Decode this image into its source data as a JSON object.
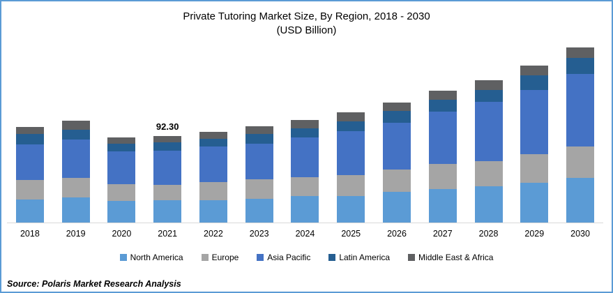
{
  "frame": {
    "border_color": "#5b9bd5",
    "background": "#ffffff",
    "axis_line_color": "#d9d9d9"
  },
  "title": {
    "line1": "Private Tutoring Market Size, By Region, 2018 - 2030",
    "line2": "(USD Billion)"
  },
  "source": "Source: Polaris  Market Research Analysis",
  "chart_data": {
    "type": "bar",
    "stacked": true,
    "title": "Private Tutoring Market Size, By Region, 2018 - 2030 (USD Billion)",
    "ylabel": "USD Billion",
    "xlabel": "",
    "grid": false,
    "legend_position": "bottom",
    "ylim": [
      0,
      190
    ],
    "categories": [
      "2018",
      "2019",
      "2020",
      "2021",
      "2022",
      "2023",
      "2024",
      "2025",
      "2026",
      "2027",
      "2028",
      "2029",
      "2030"
    ],
    "series": [
      {
        "name": "North America",
        "color": "#5b9bd5",
        "values": [
          25.0,
          26.8,
          23.0,
          23.8,
          24.2,
          25.5,
          28.0,
          28.7,
          33.2,
          36.2,
          38.8,
          42.5,
          47.5
        ]
      },
      {
        "name": "Europe",
        "color": "#a5a5a5",
        "values": [
          20.8,
          21.2,
          17.8,
          16.7,
          18.8,
          20.8,
          20.8,
          22.3,
          23.6,
          26.7,
          27.0,
          30.8,
          33.8
        ]
      },
      {
        "name": "Asia Pacific",
        "color": "#4472c4",
        "values": [
          38.0,
          40.8,
          35.5,
          36.3,
          38.3,
          38.0,
          42.3,
          47.0,
          50.0,
          56.0,
          63.0,
          68.8,
          77.5
        ]
      },
      {
        "name": "Latin America",
        "color": "#255e91",
        "values": [
          11.2,
          10.5,
          8.0,
          8.8,
          8.0,
          10.5,
          10.0,
          10.5,
          12.5,
          12.5,
          13.3,
          15.5,
          17.5
        ]
      },
      {
        "name": "Middle East & Africa",
        "color": "#5f6062",
        "values": [
          7.2,
          9.5,
          7.0,
          6.7,
          8.0,
          8.0,
          8.4,
          9.5,
          8.8,
          10.0,
          10.0,
          10.5,
          10.7
        ]
      }
    ],
    "totals": [
      102.2,
      108.8,
      91.3,
      92.3,
      97.3,
      102.8,
      109.5,
      118.0,
      128.1,
      141.4,
      152.1,
      168.1,
      187.0
    ],
    "annotations": [
      {
        "category": "2021",
        "label": "92.30"
      }
    ]
  }
}
